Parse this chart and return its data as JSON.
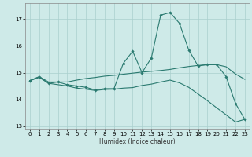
{
  "xlabel": "Humidex (Indice chaleur)",
  "xlim": [
    -0.5,
    23.5
  ],
  "ylim": [
    12.9,
    17.6
  ],
  "yticks": [
    13,
    14,
    15,
    16,
    17
  ],
  "xticks": [
    0,
    1,
    2,
    3,
    4,
    5,
    6,
    7,
    8,
    9,
    10,
    11,
    12,
    13,
    14,
    15,
    16,
    17,
    18,
    19,
    20,
    21,
    22,
    23
  ],
  "bg_color": "#ceeae8",
  "grid_color": "#aacfcd",
  "line_color": "#2a7a70",
  "line1_x": [
    0,
    1,
    2,
    3,
    4,
    5,
    6,
    7,
    8,
    9,
    10,
    11,
    12,
    13,
    14,
    15,
    16,
    17,
    18,
    19,
    20,
    21,
    22,
    23
  ],
  "line1_y": [
    14.7,
    14.85,
    14.6,
    14.65,
    14.55,
    14.5,
    14.45,
    14.35,
    14.4,
    14.4,
    15.35,
    15.8,
    15.0,
    15.55,
    17.15,
    17.25,
    16.85,
    15.85,
    15.25,
    15.3,
    15.3,
    14.85,
    13.85,
    13.25
  ],
  "line2_x": [
    0,
    1,
    2,
    3,
    4,
    5,
    6,
    7,
    8,
    9,
    10,
    11,
    12,
    13,
    14,
    15,
    16,
    17,
    18,
    19,
    20,
    21,
    22,
    23
  ],
  "line2_y": [
    14.7,
    14.85,
    14.65,
    14.65,
    14.65,
    14.72,
    14.78,
    14.82,
    14.87,
    14.9,
    14.94,
    14.98,
    15.02,
    15.05,
    15.08,
    15.12,
    15.18,
    15.23,
    15.27,
    15.3,
    15.3,
    15.22,
    14.95,
    14.75
  ],
  "line3_x": [
    0,
    1,
    2,
    3,
    4,
    5,
    6,
    7,
    8,
    9,
    10,
    11,
    12,
    13,
    14,
    15,
    16,
    17,
    18,
    19,
    20,
    21,
    22,
    23
  ],
  "line3_y": [
    14.7,
    14.82,
    14.6,
    14.55,
    14.5,
    14.42,
    14.38,
    14.33,
    14.37,
    14.38,
    14.42,
    14.44,
    14.52,
    14.57,
    14.65,
    14.72,
    14.62,
    14.45,
    14.2,
    13.95,
    13.68,
    13.42,
    13.15,
    13.25
  ]
}
